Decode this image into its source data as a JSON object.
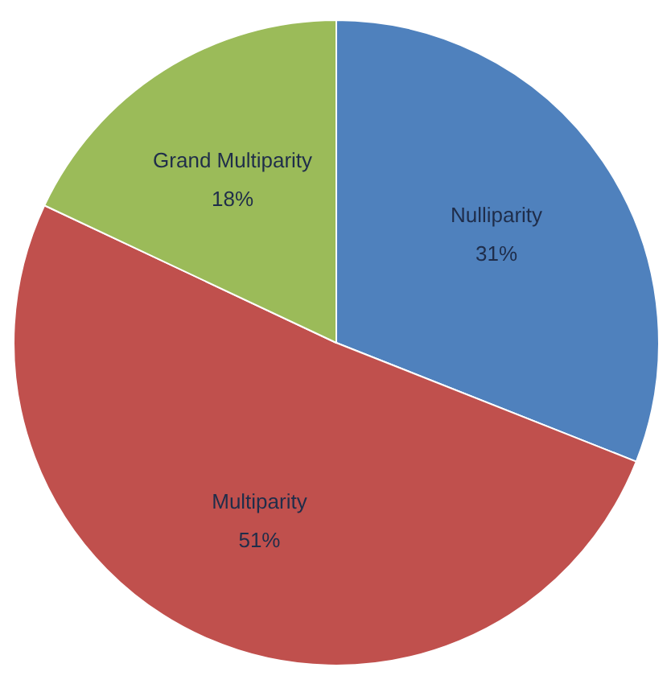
{
  "chart_data": {
    "type": "pie",
    "categories": [
      "Nulliparity",
      "Multiparity",
      "Grand Multiparity"
    ],
    "values": [
      31,
      51,
      18
    ],
    "colors": [
      "#4f81bd",
      "#c0504d",
      "#9bbb59"
    ],
    "value_labels": [
      "31%",
      "51%",
      "18%"
    ]
  }
}
